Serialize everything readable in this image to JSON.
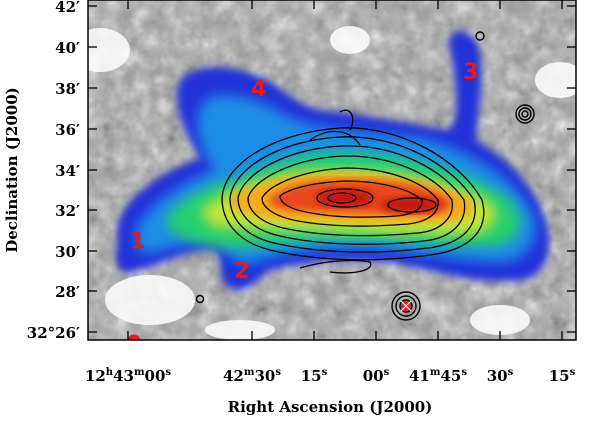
{
  "figure": {
    "x_axis_label": "Right Ascension (J2000)",
    "y_axis_label": "Declination (J2000)",
    "x_ticks": [
      {
        "h": "12",
        "hu": "h",
        "m": "43",
        "mu": "m",
        "s": "00",
        "su": "s"
      },
      {
        "h": "",
        "hu": "",
        "m": "42",
        "mu": "m",
        "s": "30",
        "su": "s"
      },
      {
        "h": "",
        "hu": "",
        "m": "",
        "mu": "",
        "s": "15",
        "su": "s"
      },
      {
        "h": "",
        "hu": "",
        "m": "",
        "mu": "",
        "s": "00",
        "su": "s"
      },
      {
        "h": "",
        "hu": "",
        "m": "41",
        "mu": "m",
        "s": "45",
        "su": "s"
      },
      {
        "h": "",
        "hu": "",
        "m": "",
        "mu": "",
        "s": "30",
        "su": "s"
      },
      {
        "h": "",
        "hu": "",
        "m": "",
        "mu": "",
        "s": "15",
        "su": "s"
      }
    ],
    "y_ticks": [
      "42′",
      "40′",
      "38′",
      "36′",
      "34′",
      "32′",
      "30′",
      "28′",
      "32°26′"
    ],
    "region_labels": [
      "1",
      "2",
      "3",
      "4"
    ],
    "beam_marker_color": "#e8181f",
    "colormap": [
      "#1c2bd6",
      "#1c8ce8",
      "#24d47a",
      "#c8e23c",
      "#f2b01c",
      "#e8411c",
      "#c01812"
    ],
    "background": "greyscale optical image",
    "contour_color": "#000000"
  }
}
